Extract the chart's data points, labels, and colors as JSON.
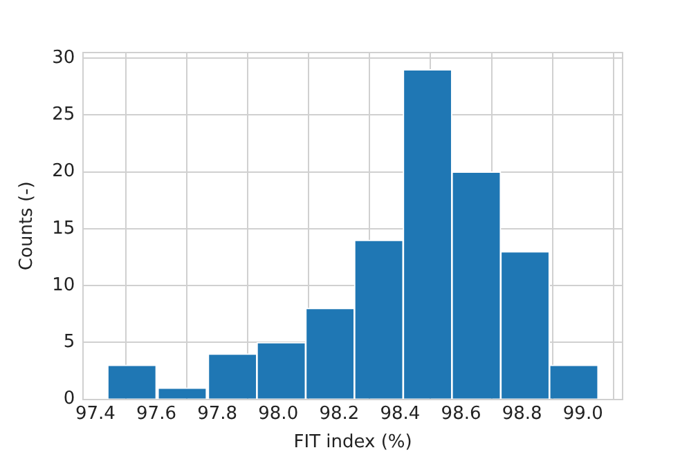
{
  "chart_data": {
    "type": "histogram",
    "xlabel": "FIT index (%)",
    "ylabel": "Counts (-)",
    "bins": [
      97.44,
      97.6,
      97.77,
      97.93,
      98.09,
      98.25,
      98.41,
      98.57,
      98.73,
      98.89,
      99.05
    ],
    "values": [
      3,
      1,
      4,
      5,
      8,
      14,
      29,
      20,
      13,
      3
    ],
    "color": "#1f77b4",
    "xlim": [
      97.36,
      99.13
    ],
    "xticks": [
      97.4,
      97.6,
      97.8,
      {
        "value": 98,
        "label": "98.0"
      },
      98.2,
      98.4,
      98.6,
      98.8,
      {
        "value": 99,
        "label": "99.0"
      }
    ],
    "ylim": [
      0,
      30.5
    ],
    "yticks": [
      0,
      5,
      10,
      15,
      20,
      25,
      30
    ],
    "grid": true,
    "legend": false
  }
}
